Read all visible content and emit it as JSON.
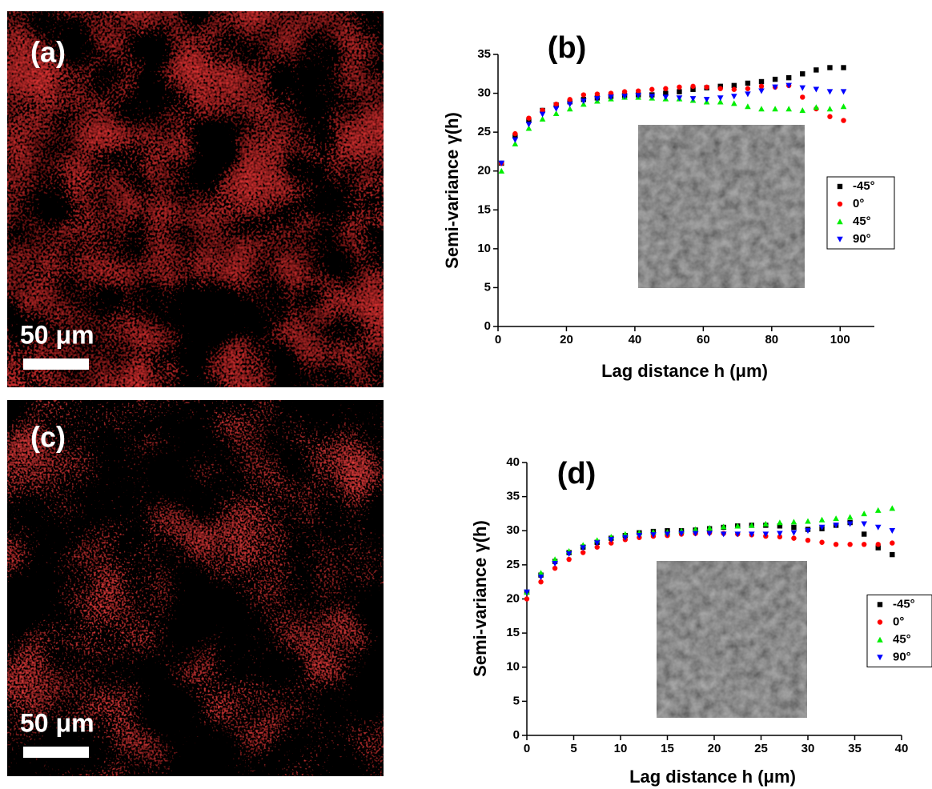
{
  "panels": [
    {
      "label": "(a)",
      "scale_bar": "50 μm"
    },
    {
      "label": "(c)",
      "scale_bar": "50 μm"
    }
  ],
  "chart_data": [
    {
      "type": "scatter",
      "title": "(b)",
      "x_label": "Lag distance h (μm)",
      "y_label": "Semi-variance γ(h)",
      "xlim": [
        0,
        110
      ],
      "xticks": [
        0,
        20,
        40,
        60,
        80,
        100
      ],
      "ylim": [
        0,
        35
      ],
      "yticks": [
        0,
        5,
        10,
        15,
        20,
        25,
        30,
        35
      ],
      "legend": "right",
      "x": [
        1,
        5,
        9,
        13,
        17,
        21,
        25,
        29,
        33,
        37,
        41,
        45,
        49,
        53,
        57,
        61,
        65,
        69,
        73,
        77,
        81,
        85,
        89,
        93,
        97,
        101
      ],
      "series": [
        {
          "name": "-45°",
          "color": "#000000",
          "marker": "square",
          "values": [
            21,
            24.5,
            26.5,
            27.8,
            28.5,
            28.9,
            29.2,
            29.4,
            29.6,
            29.7,
            29.8,
            29.8,
            30,
            30.2,
            30.5,
            30.7,
            30.9,
            31,
            31.3,
            31.5,
            31.8,
            32,
            32.5,
            33,
            33.3,
            33.3
          ]
        },
        {
          "name": "0°",
          "color": "#ff0000",
          "marker": "circle",
          "values": [
            21,
            24.8,
            26.8,
            27.8,
            28.6,
            29.2,
            29.8,
            29.9,
            30,
            30.2,
            30.3,
            30.5,
            30.6,
            30.8,
            30.9,
            30.8,
            30.6,
            30.5,
            30.6,
            30.9,
            30.8,
            31,
            29.5,
            28,
            27,
            26.5
          ]
        },
        {
          "name": "45°",
          "color": "#00ee00",
          "marker": "triangle-up",
          "values": [
            20,
            23.5,
            25.5,
            26.7,
            27.4,
            28,
            28.6,
            29,
            29.3,
            29.5,
            29.5,
            29.4,
            29.3,
            29.3,
            29.1,
            28.9,
            28.9,
            28.7,
            28.3,
            28,
            28,
            28,
            27.8,
            28.2,
            28,
            28.3
          ]
        },
        {
          "name": "90°",
          "color": "#0000ff",
          "marker": "triangle-down",
          "values": [
            21,
            24,
            26,
            27.3,
            28,
            28.6,
            29,
            29.3,
            29.5,
            29.6,
            29.7,
            29.6,
            29.5,
            29.4,
            29.3,
            29.2,
            29.4,
            29.6,
            29.9,
            30.3,
            30.8,
            31,
            30.7,
            30.5,
            30.2,
            30.2
          ]
        }
      ]
    },
    {
      "type": "scatter",
      "title": "(d)",
      "x_label": "Lag distance h (μm)",
      "y_label": "Semi-variance γ(h)",
      "xlim": [
        0,
        40
      ],
      "xticks": [
        0,
        5,
        10,
        15,
        20,
        25,
        30,
        35,
        40
      ],
      "ylim": [
        0,
        40
      ],
      "yticks": [
        0,
        5,
        10,
        15,
        20,
        25,
        30,
        35,
        40
      ],
      "legend": "right",
      "x": [
        0,
        1.5,
        3,
        4.5,
        6,
        7.5,
        9,
        10.5,
        12,
        13.5,
        15,
        16.5,
        18,
        19.5,
        21,
        22.5,
        24,
        25.5,
        27,
        28.5,
        30,
        31.5,
        33,
        34.5,
        36,
        37.5,
        39
      ],
      "series": [
        {
          "name": "-45°",
          "color": "#000000",
          "marker": "square",
          "values": [
            21,
            23.5,
            25.5,
            26.8,
            27.6,
            28.3,
            28.9,
            29.3,
            29.7,
            29.9,
            30,
            30,
            30.1,
            30.3,
            30.5,
            30.7,
            30.8,
            30.8,
            30.7,
            30.5,
            30.2,
            30.3,
            30.8,
            31.2,
            29.5,
            27.5,
            26.5
          ]
        },
        {
          "name": "0°",
          "color": "#ff0000",
          "marker": "circle",
          "values": [
            20,
            22.5,
            24.5,
            25.8,
            26.8,
            27.6,
            28.2,
            28.7,
            29,
            29.2,
            29.3,
            29.5,
            29.6,
            29.7,
            29.6,
            29.5,
            29.4,
            29.2,
            29.1,
            28.9,
            28.6,
            28.3,
            28,
            28,
            28,
            28,
            28.2
          ]
        },
        {
          "name": "45°",
          "color": "#00ee00",
          "marker": "triangle-up",
          "values": [
            21,
            23.8,
            25.8,
            27,
            27.9,
            28.6,
            29.1,
            29.5,
            29.7,
            29.8,
            29.8,
            30,
            30.2,
            30.4,
            30.6,
            30.7,
            30.8,
            31,
            31.2,
            31.3,
            31.4,
            31.6,
            31.8,
            32,
            32.5,
            33,
            33.3
          ]
        },
        {
          "name": "90°",
          "color": "#0000ff",
          "marker": "triangle-down",
          "values": [
            21,
            23.2,
            25.2,
            26.6,
            27.5,
            28.2,
            28.7,
            29,
            29.3,
            29.4,
            29.5,
            29.6,
            29.6,
            29.6,
            29.5,
            29.5,
            29.5,
            29.5,
            29.6,
            29.7,
            30,
            30.5,
            30.8,
            31,
            31,
            30.5,
            30
          ]
        }
      ]
    }
  ]
}
